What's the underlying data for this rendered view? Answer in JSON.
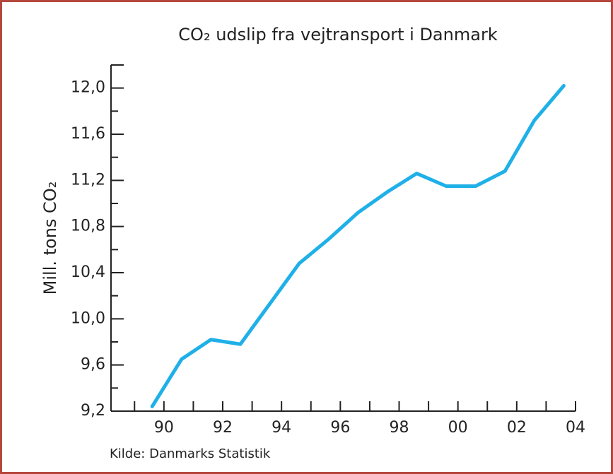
{
  "chart_data": {
    "type": "line",
    "title": "CO₂ udslip fra vejtransport i Danmark",
    "y_label": "Mill. tons CO₂",
    "source": "Kilde: Danmarks Statistik",
    "x": [
      1989.6,
      1990.6,
      1991.6,
      1992.6,
      1993.6,
      1994.6,
      1995.6,
      1996.6,
      1997.6,
      1998.6,
      1999.6,
      2000.6,
      2001.6,
      2002.6,
      2003.6
    ],
    "series": [
      {
        "name": "CO₂ udslip",
        "color": "#1fb0e8",
        "values": [
          9.24,
          9.65,
          9.82,
          9.78,
          10.13,
          10.48,
          10.69,
          10.92,
          11.1,
          11.26,
          11.15,
          11.15,
          11.28,
          11.72,
          12.02
        ]
      }
    ],
    "xlim": [
      1988.2,
      2004
    ],
    "xticks": [
      {
        "value": 1990,
        "label": "90"
      },
      {
        "value": 1992,
        "label": "92"
      },
      {
        "value": 1994,
        "label": "94"
      },
      {
        "value": 1996,
        "label": "96"
      },
      {
        "value": 1998,
        "label": "98"
      },
      {
        "value": 2000,
        "label": "00"
      },
      {
        "value": 2002,
        "label": "02"
      },
      {
        "value": 2004,
        "label": "04"
      }
    ],
    "ylim": [
      9.2,
      12.2
    ],
    "yticks": [
      {
        "value": 9.2,
        "label": "9,2"
      },
      {
        "value": 9.6,
        "label": "9,6"
      },
      {
        "value": 10.0,
        "label": "10,0"
      },
      {
        "value": 10.4,
        "label": "10,4"
      },
      {
        "value": 10.8,
        "label": "10,8"
      },
      {
        "value": 11.2,
        "label": "11,2"
      },
      {
        "value": 11.6,
        "label": "11,6"
      },
      {
        "value": 12.0,
        "label": "12,0"
      }
    ],
    "grid": false
  }
}
